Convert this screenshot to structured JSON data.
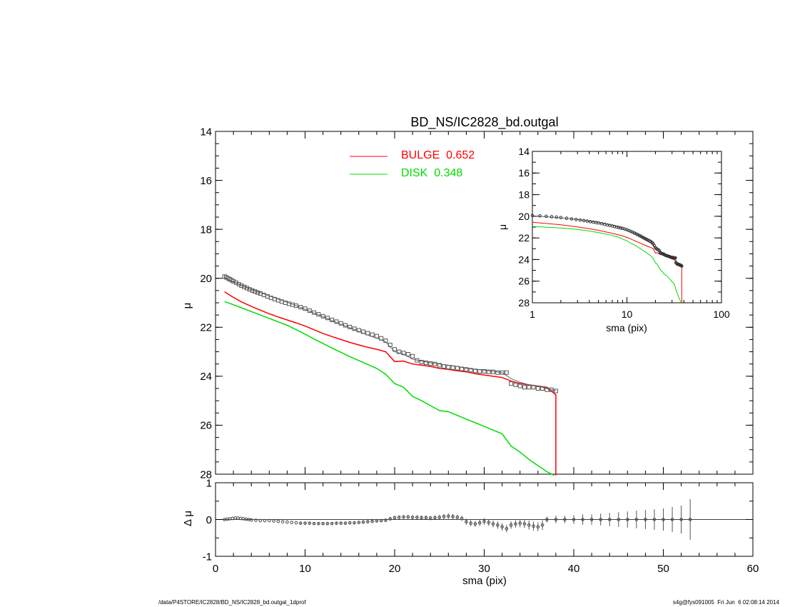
{
  "chart_data": [
    {
      "id": "main",
      "type": "line",
      "title": "BD_NS/IC2828_bd.outgal",
      "xlabel": "",
      "ylabel": "μ",
      "xlim": [
        0,
        60
      ],
      "ylim": [
        28,
        14
      ],
      "y_inverted": true,
      "yticks": [
        14,
        16,
        18,
        20,
        22,
        24,
        26,
        28
      ],
      "xticks": [
        0,
        10,
        20,
        30,
        40,
        50,
        60
      ],
      "legend": "top-center",
      "series": [
        {
          "name": "BULGE  0.652",
          "color": "#ff0000",
          "x": [
            1,
            2,
            3,
            4,
            5,
            6,
            7,
            8,
            9,
            10,
            11,
            12,
            13,
            14,
            15,
            16,
            17,
            18,
            19,
            20,
            21,
            22,
            23,
            24,
            25,
            26,
            27,
            28,
            29,
            30,
            31,
            32,
            33,
            34,
            35,
            36,
            37,
            37.95,
            38,
            38
          ],
          "y": [
            20.55,
            20.78,
            20.98,
            21.15,
            21.3,
            21.45,
            21.58,
            21.7,
            21.82,
            21.95,
            22.1,
            22.25,
            22.38,
            22.5,
            22.62,
            22.72,
            22.82,
            22.9,
            23.0,
            23.4,
            23.38,
            23.5,
            23.55,
            23.6,
            23.68,
            23.72,
            23.78,
            23.82,
            23.9,
            23.95,
            24.0,
            24.05,
            24.2,
            24.3,
            24.35,
            24.4,
            24.45,
            24.75,
            24.75,
            28.3
          ]
        },
        {
          "name": "DISK  0.348",
          "color": "#00dd00",
          "x": [
            1,
            2,
            3,
            4,
            5,
            6,
            7,
            8,
            9,
            10,
            11,
            12,
            13,
            14,
            15,
            16,
            17,
            18,
            19,
            20,
            21,
            22,
            23,
            24,
            25,
            26,
            27,
            28,
            29,
            30,
            31,
            32,
            33,
            34,
            35,
            36,
            37,
            37.8
          ],
          "y": [
            20.95,
            21.08,
            21.22,
            21.36,
            21.5,
            21.64,
            21.78,
            21.92,
            22.1,
            22.28,
            22.48,
            22.66,
            22.85,
            23.02,
            23.2,
            23.36,
            23.52,
            23.68,
            23.92,
            24.3,
            24.45,
            24.82,
            25.0,
            25.2,
            25.4,
            25.45,
            25.6,
            25.75,
            25.9,
            26.05,
            26.2,
            26.35,
            26.85,
            27.1,
            27.4,
            27.65,
            27.9,
            28.1
          ]
        },
        {
          "name": "",
          "color": "#666666",
          "x": [
            1,
            2,
            3,
            4,
            5,
            6,
            7,
            8,
            9,
            10,
            11,
            12,
            13,
            14,
            15,
            16,
            17,
            18,
            19,
            20,
            21,
            22,
            23,
            24,
            25,
            26,
            27,
            28,
            29,
            30,
            31,
            32,
            33,
            34,
            35,
            36,
            37,
            38
          ],
          "y": [
            19.95,
            20.15,
            20.3,
            20.45,
            20.58,
            20.72,
            20.85,
            20.98,
            21.12,
            21.27,
            21.42,
            21.57,
            21.73,
            21.88,
            22.02,
            22.17,
            22.32,
            22.45,
            22.6,
            23.0,
            23.1,
            23.3,
            23.38,
            23.45,
            23.5,
            23.55,
            23.6,
            23.68,
            23.72,
            23.75,
            23.8,
            23.85,
            24.1,
            24.25,
            24.35,
            24.4,
            24.5,
            24.6
          ]
        }
      ],
      "observed_points": {
        "marker": "square",
        "x": [
          1.0,
          1.2,
          1.4,
          1.6,
          1.8,
          2.0,
          2.3,
          2.6,
          2.9,
          3.2,
          3.5,
          3.8,
          4.1,
          4.4,
          4.7,
          5.0,
          5.4,
          5.8,
          6.2,
          6.6,
          7.0,
          7.4,
          7.8,
          8.2,
          8.6,
          9.0,
          9.5,
          10.0,
          10.5,
          11.0,
          11.5,
          12.0,
          12.5,
          13.0,
          13.5,
          14.0,
          14.5,
          15.0,
          15.5,
          16.0,
          16.5,
          17.0,
          17.5,
          18.0,
          18.5,
          19.0,
          19.5,
          20.0,
          20.5,
          21.0,
          21.5,
          22.0,
          22.5,
          23.0,
          23.5,
          24.0,
          24.5,
          25.0,
          25.5,
          26.0,
          26.5,
          27.0,
          27.5,
          28.0,
          28.5,
          29.0,
          29.5,
          30.0,
          30.5,
          31.0,
          31.5,
          32.0,
          32.5,
          33.0,
          33.5,
          34.0,
          34.5,
          35.0,
          35.5,
          36.0,
          36.5,
          37.0,
          37.5,
          38.0
        ],
        "y": [
          19.93,
          19.96,
          20.0,
          20.04,
          20.08,
          20.12,
          20.18,
          20.24,
          20.3,
          20.35,
          20.4,
          20.45,
          20.5,
          20.54,
          20.58,
          20.62,
          20.68,
          20.74,
          20.8,
          20.85,
          20.9,
          20.95,
          21.0,
          21.04,
          21.08,
          21.12,
          21.18,
          21.24,
          21.32,
          21.4,
          21.47,
          21.55,
          21.62,
          21.7,
          21.77,
          21.84,
          21.92,
          21.99,
          22.06,
          22.12,
          22.18,
          22.24,
          22.3,
          22.36,
          22.45,
          22.55,
          22.72,
          22.9,
          23.0,
          23.05,
          23.1,
          23.18,
          23.35,
          23.42,
          23.45,
          23.48,
          23.5,
          23.55,
          23.6,
          23.63,
          23.65,
          23.67,
          23.7,
          23.72,
          23.75,
          23.78,
          23.8,
          23.8,
          23.82,
          23.82,
          23.85,
          23.85,
          23.85,
          24.3,
          24.35,
          24.4,
          24.45,
          24.45,
          24.45,
          24.5,
          24.5,
          24.55,
          24.55,
          24.6
        ]
      }
    },
    {
      "id": "residual",
      "type": "scatter",
      "title": "",
      "xlabel": "sma (pix)",
      "ylabel": "Δ μ",
      "xlim": [
        0,
        60
      ],
      "ylim": [
        -1,
        1
      ],
      "yticks": [
        -1,
        0,
        1
      ],
      "xticks": [
        0,
        10,
        20,
        30,
        40,
        50,
        60
      ],
      "reference_line": 0,
      "x": [
        1.0,
        1.3,
        1.6,
        1.9,
        2.2,
        2.5,
        2.8,
        3.1,
        3.4,
        3.7,
        4.0,
        4.5,
        5.0,
        5.5,
        6.0,
        6.5,
        7.0,
        7.5,
        8.0,
        8.5,
        9.0,
        9.5,
        10.0,
        10.5,
        11.0,
        11.5,
        12.0,
        12.5,
        13.0,
        13.5,
        14.0,
        14.5,
        15.0,
        15.5,
        16.0,
        16.5,
        17.0,
        17.5,
        18.0,
        18.5,
        19.0,
        19.5,
        20.0,
        20.5,
        21.0,
        21.5,
        22.0,
        22.5,
        23.0,
        23.5,
        24.0,
        24.5,
        25.0,
        25.5,
        26.0,
        26.5,
        27.0,
        27.5,
        28.0,
        28.5,
        29.0,
        29.5,
        30.0,
        30.5,
        31.0,
        31.5,
        32.0,
        32.5,
        33.0,
        33.5,
        34.0,
        34.5,
        35.0,
        35.5,
        36.0,
        36.5,
        37.0,
        38.0,
        39.0,
        40.0,
        41.0,
        42.0,
        43.0,
        44.0,
        45.0,
        46.0,
        47.0,
        48.0,
        49.0,
        50.0,
        51.0,
        52.0,
        53.0
      ],
      "y": [
        0.0,
        0.01,
        0.02,
        0.03,
        0.04,
        0.04,
        0.03,
        0.02,
        0.01,
        0.0,
        -0.01,
        -0.02,
        -0.03,
        -0.03,
        -0.03,
        -0.04,
        -0.05,
        -0.06,
        -0.07,
        -0.08,
        -0.09,
        -0.1,
        -0.1,
        -0.1,
        -0.11,
        -0.11,
        -0.11,
        -0.11,
        -0.11,
        -0.1,
        -0.1,
        -0.1,
        -0.09,
        -0.09,
        -0.08,
        -0.07,
        -0.06,
        -0.05,
        -0.04,
        -0.03,
        -0.02,
        0.02,
        0.05,
        0.06,
        0.07,
        0.07,
        0.06,
        0.06,
        0.05,
        0.05,
        0.04,
        0.05,
        0.06,
        0.08,
        0.09,
        0.08,
        0.06,
        0.03,
        -0.06,
        -0.1,
        -0.12,
        -0.09,
        -0.05,
        -0.08,
        -0.12,
        -0.15,
        -0.2,
        -0.25,
        -0.15,
        -0.12,
        -0.1,
        -0.12,
        -0.15,
        -0.18,
        -0.2,
        -0.15,
        0.0,
        0.0,
        0.0,
        0.0,
        0.0,
        0.0,
        0.0,
        0.0,
        0.0,
        0.0,
        0.0,
        0.0,
        0.0,
        0.0,
        0.0,
        0.0,
        0.0
      ],
      "err": [
        0.01,
        0.01,
        0.01,
        0.01,
        0.01,
        0.01,
        0.01,
        0.01,
        0.01,
        0.01,
        0.02,
        0.02,
        0.02,
        0.02,
        0.02,
        0.02,
        0.02,
        0.02,
        0.02,
        0.02,
        0.02,
        0.03,
        0.03,
        0.03,
        0.03,
        0.03,
        0.03,
        0.03,
        0.03,
        0.03,
        0.03,
        0.03,
        0.04,
        0.04,
        0.04,
        0.04,
        0.04,
        0.04,
        0.04,
        0.04,
        0.05,
        0.05,
        0.05,
        0.05,
        0.05,
        0.05,
        0.05,
        0.05,
        0.06,
        0.06,
        0.06,
        0.06,
        0.06,
        0.07,
        0.07,
        0.07,
        0.07,
        0.07,
        0.08,
        0.08,
        0.08,
        0.08,
        0.09,
        0.09,
        0.09,
        0.1,
        0.1,
        0.1,
        0.1,
        0.1,
        0.11,
        0.11,
        0.12,
        0.12,
        0.12,
        0.13,
        0.08,
        0.1,
        0.1,
        0.12,
        0.14,
        0.14,
        0.16,
        0.18,
        0.2,
        0.22,
        0.24,
        0.26,
        0.28,
        0.3,
        0.34,
        0.38,
        0.55
      ]
    },
    {
      "id": "inset",
      "type": "line",
      "title": "",
      "xlabel": "sma (pix)",
      "ylabel": "μ",
      "xscale": "log",
      "xlim": [
        1,
        100
      ],
      "ylim": [
        28,
        14
      ],
      "y_inverted": true,
      "yticks": [
        14,
        16,
        18,
        20,
        22,
        24,
        26,
        28
      ],
      "xticks": [
        1,
        10,
        100
      ],
      "xtick_labels": [
        "1",
        "10",
        "100"
      ],
      "series_ref": [
        "BULGE  0.652",
        "DISK  0.348",
        "",
        "observed_points"
      ]
    }
  ],
  "footer": {
    "left": "/data/P4STORE/IC2828/BD_NS/IC2828_bd.outgal_1dprof",
    "right": "s4g@fys091005  Fri Jun  6 02:08:14 2014"
  }
}
